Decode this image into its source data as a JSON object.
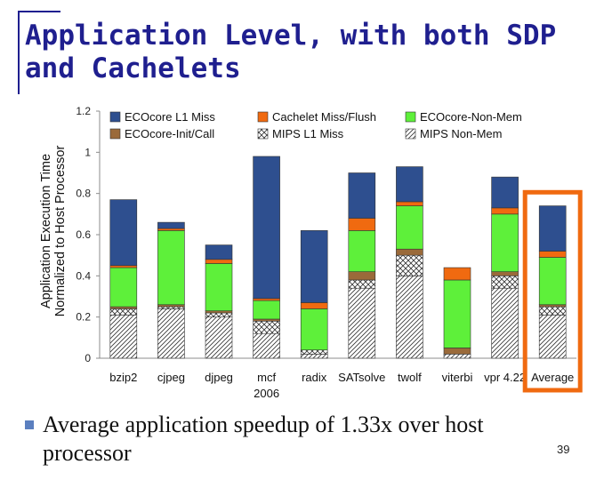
{
  "slide": {
    "title": "Application Level, with both SDP and Cachelets",
    "bullet": "Average application speedup of 1.33x over host processor",
    "page_number": "39"
  },
  "colors": {
    "title": "#1f1f8f",
    "l1_miss": "#2e4f8f",
    "init_call": "#9a6a3a",
    "non_mem": "#5ef03a",
    "cachelet": "#f06a10",
    "highlight_box": "#f06a10"
  },
  "chart_data": {
    "type": "bar",
    "stacked": true,
    "ylabel": "Application Execution Time Normalized to Host Processor",
    "ylim": [
      0,
      1.2
    ],
    "yticks": [
      "0",
      "0.2",
      "0.4",
      "0.6",
      "0.8",
      "1",
      "1.2"
    ],
    "categories": [
      "bzip2",
      "cjpeg",
      "djpeg",
      "mcf 2006",
      "radix",
      "SATsolve",
      "twolf",
      "viterbi",
      "vpr 4.22",
      "Average"
    ],
    "highlight_category": "Average",
    "legend_position": "top",
    "legend_columns": [
      [
        "ECOcore L1 Miss",
        "ECOcore-Init/Call"
      ],
      [
        "Cachelet Miss/Flush",
        "MIPS L1 Miss"
      ],
      [
        "ECOcore-Non-Mem",
        "MIPS Non-Mem"
      ]
    ],
    "series": [
      {
        "name": "MIPS Non-Mem",
        "key": "mips_nonmem",
        "values": [
          0.21,
          0.24,
          0.2,
          0.12,
          0.02,
          0.34,
          0.4,
          0.02,
          0.34,
          0.21
        ]
      },
      {
        "name": "MIPS L1 Miss",
        "key": "mips_l1",
        "values": [
          0.03,
          0.01,
          0.02,
          0.06,
          0.02,
          0.04,
          0.1,
          0.0,
          0.06,
          0.04
        ]
      },
      {
        "name": "ECOcore-Init/Call",
        "key": "init_call",
        "values": [
          0.01,
          0.01,
          0.01,
          0.01,
          0.0,
          0.04,
          0.03,
          0.03,
          0.02,
          0.01
        ]
      },
      {
        "name": "ECOcore-Non-Mem",
        "key": "non_mem",
        "values": [
          0.19,
          0.36,
          0.23,
          0.09,
          0.2,
          0.2,
          0.21,
          0.33,
          0.28,
          0.23
        ]
      },
      {
        "name": "Cachelet Miss/Flush",
        "key": "cachelet",
        "values": [
          0.01,
          0.01,
          0.02,
          0.01,
          0.03,
          0.06,
          0.02,
          0.06,
          0.03,
          0.03
        ]
      },
      {
        "name": "ECOcore L1 Miss",
        "key": "l1_miss",
        "values": [
          0.32,
          0.03,
          0.07,
          0.69,
          0.35,
          0.22,
          0.17,
          0.0,
          0.15,
          0.22
        ]
      }
    ]
  }
}
